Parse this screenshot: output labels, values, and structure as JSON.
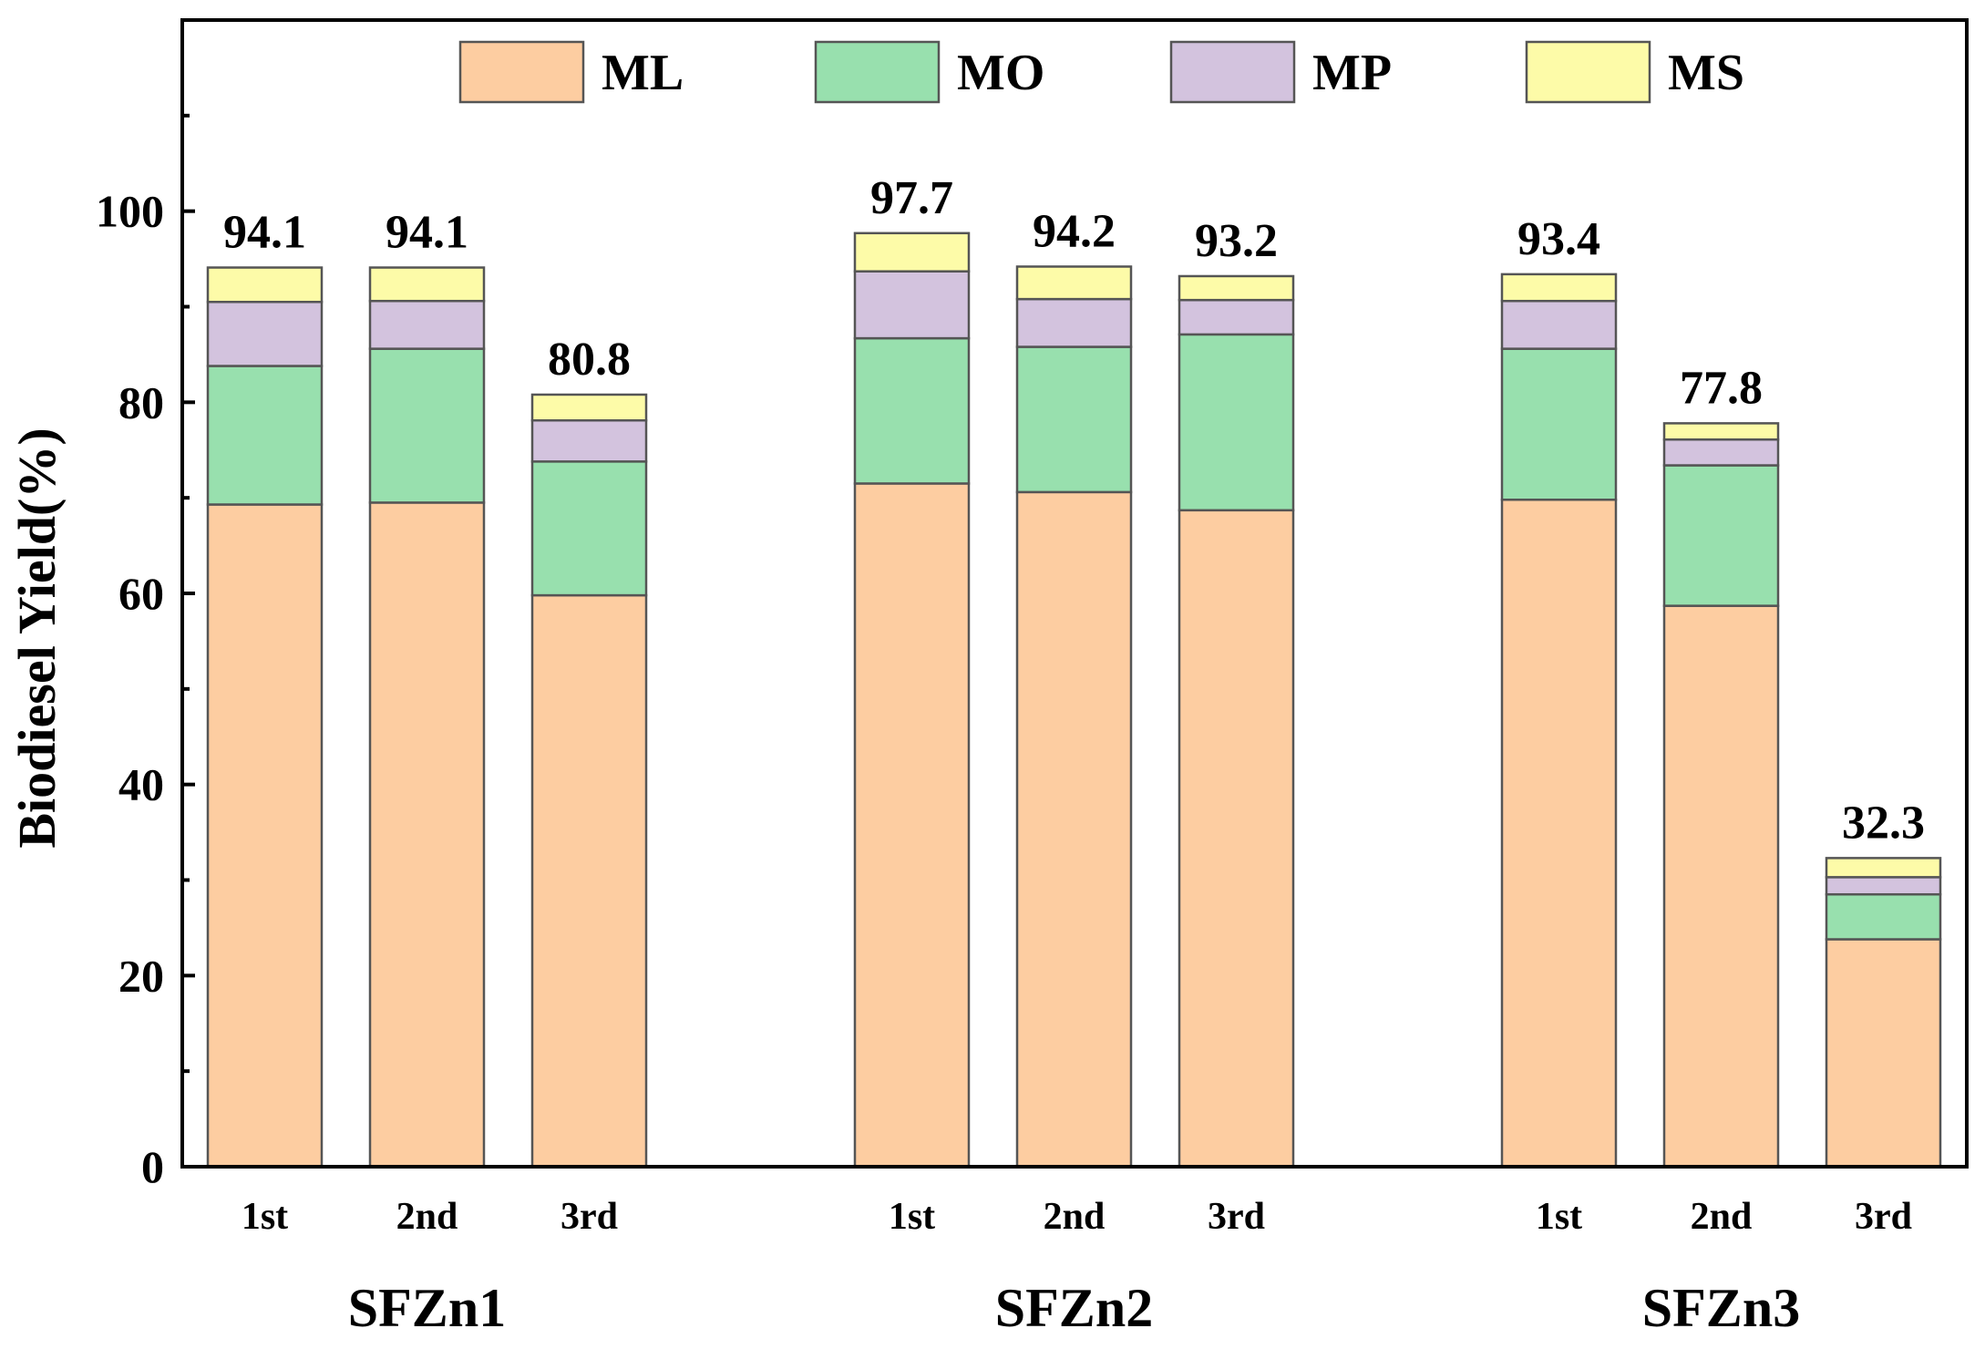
{
  "chart_data": {
    "type": "bar",
    "stacked": true,
    "title": "",
    "xlabel": "",
    "ylabel": "Biodiesel Yield(%)",
    "ylim": [
      0,
      120
    ],
    "yticks": [
      0,
      20,
      40,
      60,
      80,
      100
    ],
    "grid": false,
    "legend_position": "top",
    "groups": [
      {
        "name": "SFZn1",
        "categories": [
          "1st",
          "2nd",
          "3rd"
        ],
        "totals": [
          "94.1",
          "94.1",
          "80.8"
        ],
        "segments": {
          "ML": [
            69.3,
            69.5,
            59.8
          ],
          "MO": [
            14.5,
            16.1,
            14.0
          ],
          "MP": [
            6.7,
            5.0,
            4.3
          ],
          "MS": [
            3.6,
            3.5,
            2.7
          ]
        }
      },
      {
        "name": "SFZn2",
        "categories": [
          "1st",
          "2nd",
          "3rd"
        ],
        "totals": [
          "97.7",
          "94.2",
          "93.2"
        ],
        "segments": {
          "ML": [
            71.5,
            70.6,
            68.7
          ],
          "MO": [
            15.2,
            15.2,
            18.4
          ],
          "MP": [
            7.0,
            5.0,
            3.6
          ],
          "MS": [
            4.0,
            3.4,
            2.5
          ]
        }
      },
      {
        "name": "SFZn3",
        "categories": [
          "1st",
          "2nd",
          "3rd"
        ],
        "totals": [
          "93.4",
          "77.8",
          "32.3"
        ],
        "segments": {
          "ML": [
            69.8,
            58.7,
            23.8
          ],
          "MO": [
            15.8,
            14.7,
            4.7
          ],
          "MP": [
            5.0,
            2.7,
            1.8
          ],
          "MS": [
            2.8,
            1.7,
            2.0
          ]
        }
      }
    ],
    "series": [
      {
        "name": "ML",
        "color": "#FDCDA1"
      },
      {
        "name": "MO",
        "color": "#98E0AE"
      },
      {
        "name": "MP",
        "color": "#D3C3DE"
      },
      {
        "name": "MS",
        "color": "#FDFBA8"
      }
    ]
  }
}
